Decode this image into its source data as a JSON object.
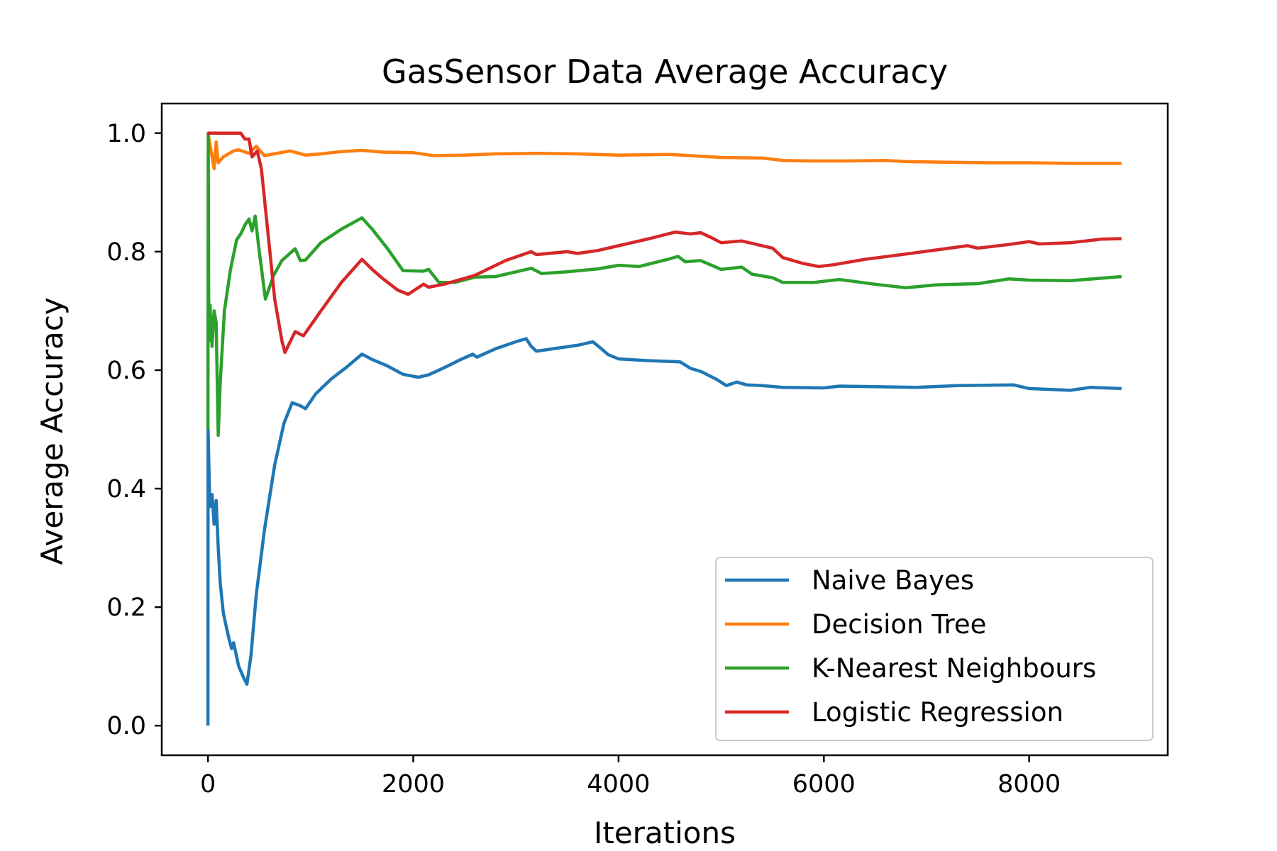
{
  "chart_data": {
    "type": "line",
    "title": "GasSensor Data Average Accuracy",
    "xlabel": "Iterations",
    "ylabel": "Average Accuracy",
    "xlim": [
      -450,
      9350
    ],
    "ylim": [
      -0.05,
      1.05
    ],
    "xticks": [
      0,
      2000,
      4000,
      6000,
      8000
    ],
    "yticks": [
      0.0,
      0.2,
      0.4,
      0.6,
      0.8,
      1.0
    ],
    "xtick_labels": [
      "0",
      "2000",
      "4000",
      "6000",
      "8000"
    ],
    "ytick_labels": [
      "0.0",
      "0.2",
      "0.4",
      "0.6",
      "0.8",
      "1.0"
    ],
    "grid": false,
    "legend_position": "lower-right",
    "series": [
      {
        "name": "Naive Bayes",
        "color": "#1f77b4",
        "points": [
          [
            0,
            0.0
          ],
          [
            1,
            0.5
          ],
          [
            10,
            0.43
          ],
          [
            20,
            0.37
          ],
          [
            40,
            0.39
          ],
          [
            60,
            0.34
          ],
          [
            80,
            0.38
          ],
          [
            100,
            0.3
          ],
          [
            120,
            0.24
          ],
          [
            150,
            0.19
          ],
          [
            200,
            0.15
          ],
          [
            230,
            0.13
          ],
          [
            250,
            0.14
          ],
          [
            300,
            0.1
          ],
          [
            350,
            0.08
          ],
          [
            380,
            0.07
          ],
          [
            420,
            0.12
          ],
          [
            470,
            0.22
          ],
          [
            550,
            0.33
          ],
          [
            650,
            0.44
          ],
          [
            740,
            0.51
          ],
          [
            820,
            0.545
          ],
          [
            900,
            0.54
          ],
          [
            950,
            0.535
          ],
          [
            1050,
            0.56
          ],
          [
            1200,
            0.585
          ],
          [
            1350,
            0.605
          ],
          [
            1500,
            0.627
          ],
          [
            1600,
            0.618
          ],
          [
            1750,
            0.607
          ],
          [
            1900,
            0.593
          ],
          [
            2050,
            0.588
          ],
          [
            2150,
            0.592
          ],
          [
            2300,
            0.604
          ],
          [
            2450,
            0.617
          ],
          [
            2580,
            0.627
          ],
          [
            2620,
            0.622
          ],
          [
            2800,
            0.636
          ],
          [
            3000,
            0.648
          ],
          [
            3100,
            0.653
          ],
          [
            3150,
            0.64
          ],
          [
            3200,
            0.632
          ],
          [
            3400,
            0.637
          ],
          [
            3600,
            0.642
          ],
          [
            3750,
            0.648
          ],
          [
            3820,
            0.638
          ],
          [
            3900,
            0.626
          ],
          [
            4000,
            0.619
          ],
          [
            4300,
            0.616
          ],
          [
            4600,
            0.614
          ],
          [
            4700,
            0.603
          ],
          [
            4800,
            0.598
          ],
          [
            4950,
            0.585
          ],
          [
            5050,
            0.574
          ],
          [
            5150,
            0.58
          ],
          [
            5250,
            0.575
          ],
          [
            5400,
            0.574
          ],
          [
            5600,
            0.571
          ],
          [
            6000,
            0.57
          ],
          [
            6150,
            0.573
          ],
          [
            6500,
            0.572
          ],
          [
            6900,
            0.571
          ],
          [
            7300,
            0.574
          ],
          [
            7850,
            0.575
          ],
          [
            8000,
            0.569
          ],
          [
            8400,
            0.566
          ],
          [
            8600,
            0.571
          ],
          [
            8900,
            0.569
          ]
        ]
      },
      {
        "name": "Decision Tree",
        "color": "#ff7f0e",
        "points": [
          [
            0,
            1.0
          ],
          [
            30,
            0.97
          ],
          [
            60,
            0.94
          ],
          [
            80,
            0.985
          ],
          [
            100,
            0.95
          ],
          [
            150,
            0.96
          ],
          [
            250,
            0.97
          ],
          [
            300,
            0.972
          ],
          [
            400,
            0.966
          ],
          [
            470,
            0.978
          ],
          [
            550,
            0.962
          ],
          [
            800,
            0.97
          ],
          [
            950,
            0.963
          ],
          [
            1100,
            0.965
          ],
          [
            1300,
            0.969
          ],
          [
            1500,
            0.971
          ],
          [
            1700,
            0.968
          ],
          [
            2000,
            0.967
          ],
          [
            2200,
            0.962
          ],
          [
            2500,
            0.963
          ],
          [
            2800,
            0.965
          ],
          [
            3200,
            0.966
          ],
          [
            3600,
            0.965
          ],
          [
            4000,
            0.963
          ],
          [
            4500,
            0.964
          ],
          [
            4700,
            0.962
          ],
          [
            5000,
            0.959
          ],
          [
            5400,
            0.958
          ],
          [
            5600,
            0.954
          ],
          [
            5900,
            0.953
          ],
          [
            6200,
            0.953
          ],
          [
            6600,
            0.954
          ],
          [
            6800,
            0.952
          ],
          [
            7200,
            0.951
          ],
          [
            7600,
            0.95
          ],
          [
            8000,
            0.95
          ],
          [
            8400,
            0.949
          ],
          [
            8900,
            0.949
          ]
        ]
      },
      {
        "name": "K-Nearest Neighbours",
        "color": "#2ca02c",
        "points": [
          [
            0,
            0.5
          ],
          [
            3,
            1.0
          ],
          [
            8,
            0.65
          ],
          [
            20,
            0.71
          ],
          [
            40,
            0.64
          ],
          [
            60,
            0.7
          ],
          [
            80,
            0.68
          ],
          [
            100,
            0.49
          ],
          [
            120,
            0.58
          ],
          [
            160,
            0.7
          ],
          [
            220,
            0.77
          ],
          [
            280,
            0.82
          ],
          [
            320,
            0.83
          ],
          [
            360,
            0.845
          ],
          [
            400,
            0.855
          ],
          [
            430,
            0.835
          ],
          [
            460,
            0.86
          ],
          [
            500,
            0.8
          ],
          [
            560,
            0.72
          ],
          [
            640,
            0.76
          ],
          [
            720,
            0.785
          ],
          [
            850,
            0.805
          ],
          [
            900,
            0.785
          ],
          [
            950,
            0.786
          ],
          [
            1100,
            0.815
          ],
          [
            1300,
            0.838
          ],
          [
            1500,
            0.857
          ],
          [
            1600,
            0.838
          ],
          [
            1750,
            0.805
          ],
          [
            1900,
            0.768
          ],
          [
            2100,
            0.767
          ],
          [
            2150,
            0.77
          ],
          [
            2250,
            0.748
          ],
          [
            2400,
            0.748
          ],
          [
            2600,
            0.757
          ],
          [
            2800,
            0.758
          ],
          [
            3000,
            0.766
          ],
          [
            3150,
            0.772
          ],
          [
            3250,
            0.763
          ],
          [
            3500,
            0.766
          ],
          [
            3800,
            0.771
          ],
          [
            4000,
            0.777
          ],
          [
            4200,
            0.775
          ],
          [
            4500,
            0.788
          ],
          [
            4580,
            0.792
          ],
          [
            4650,
            0.783
          ],
          [
            4800,
            0.785
          ],
          [
            5000,
            0.77
          ],
          [
            5200,
            0.774
          ],
          [
            5300,
            0.762
          ],
          [
            5500,
            0.756
          ],
          [
            5600,
            0.748
          ],
          [
            5900,
            0.748
          ],
          [
            6150,
            0.753
          ],
          [
            6500,
            0.745
          ],
          [
            6800,
            0.739
          ],
          [
            7100,
            0.744
          ],
          [
            7500,
            0.746
          ],
          [
            7800,
            0.754
          ],
          [
            8000,
            0.752
          ],
          [
            8400,
            0.751
          ],
          [
            8900,
            0.758
          ]
        ]
      },
      {
        "name": "Logistic Regression",
        "color": "#d62728",
        "points": [
          [
            0,
            1.0
          ],
          [
            320,
            1.0
          ],
          [
            360,
            0.99
          ],
          [
            400,
            0.99
          ],
          [
            430,
            0.96
          ],
          [
            480,
            0.97
          ],
          [
            520,
            0.94
          ],
          [
            580,
            0.84
          ],
          [
            650,
            0.72
          ],
          [
            720,
            0.65
          ],
          [
            750,
            0.63
          ],
          [
            850,
            0.665
          ],
          [
            930,
            0.658
          ],
          [
            1100,
            0.7
          ],
          [
            1300,
            0.748
          ],
          [
            1500,
            0.787
          ],
          [
            1600,
            0.77
          ],
          [
            1700,
            0.755
          ],
          [
            1850,
            0.735
          ],
          [
            1950,
            0.728
          ],
          [
            2100,
            0.745
          ],
          [
            2150,
            0.74
          ],
          [
            2300,
            0.745
          ],
          [
            2600,
            0.76
          ],
          [
            2900,
            0.785
          ],
          [
            3150,
            0.8
          ],
          [
            3200,
            0.795
          ],
          [
            3500,
            0.8
          ],
          [
            3600,
            0.797
          ],
          [
            3800,
            0.802
          ],
          [
            4000,
            0.81
          ],
          [
            4300,
            0.822
          ],
          [
            4550,
            0.833
          ],
          [
            4700,
            0.83
          ],
          [
            4800,
            0.832
          ],
          [
            4900,
            0.824
          ],
          [
            5000,
            0.815
          ],
          [
            5200,
            0.818
          ],
          [
            5300,
            0.814
          ],
          [
            5500,
            0.806
          ],
          [
            5600,
            0.79
          ],
          [
            5800,
            0.78
          ],
          [
            5950,
            0.775
          ],
          [
            6100,
            0.778
          ],
          [
            6400,
            0.787
          ],
          [
            6800,
            0.796
          ],
          [
            7100,
            0.803
          ],
          [
            7400,
            0.81
          ],
          [
            7500,
            0.806
          ],
          [
            7800,
            0.812
          ],
          [
            8000,
            0.817
          ],
          [
            8100,
            0.813
          ],
          [
            8400,
            0.815
          ],
          [
            8700,
            0.821
          ],
          [
            8900,
            0.822
          ]
        ]
      }
    ]
  }
}
